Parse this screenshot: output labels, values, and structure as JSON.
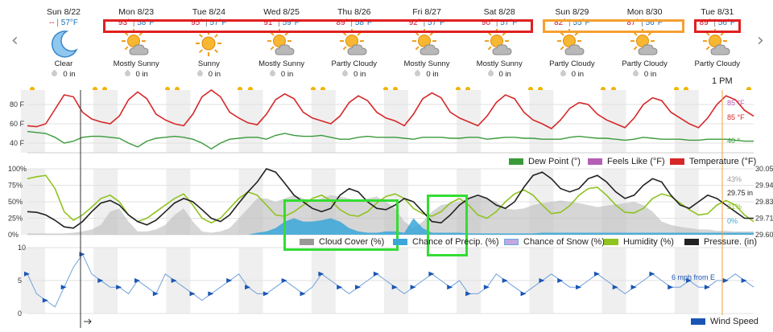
{
  "nav": {
    "prev": "‹",
    "next": "›"
  },
  "days": [
    {
      "name": "Sun 8/22",
      "hi": "--",
      "lo": "57°F",
      "cond": "Clear",
      "precip": "0 in",
      "icon": "moon"
    },
    {
      "name": "Mon 8/23",
      "hi": "93°",
      "lo": "58°F",
      "cond": "Mostly Sunny",
      "precip": "0 in",
      "icon": "sun-cloud"
    },
    {
      "name": "Tue 8/24",
      "hi": "95°",
      "lo": "57°F",
      "cond": "Sunny",
      "precip": "0 in",
      "icon": "sun"
    },
    {
      "name": "Wed 8/25",
      "hi": "91°",
      "lo": "59°F",
      "cond": "Mostly Sunny",
      "precip": "0 in",
      "icon": "sun-cloud"
    },
    {
      "name": "Thu 8/26",
      "hi": "89°",
      "lo": "58°F",
      "cond": "Partly Cloudy",
      "precip": "0 in",
      "icon": "sun-cloud"
    },
    {
      "name": "Fri 8/27",
      "hi": "92°",
      "lo": "57°F",
      "cond": "Mostly Sunny",
      "precip": "0 in",
      "icon": "sun-cloud"
    },
    {
      "name": "Sat 8/28",
      "hi": "90°",
      "lo": "57°F",
      "cond": "Mostly Sunny",
      "precip": "0 in",
      "icon": "sun-cloud"
    },
    {
      "name": "Sun 8/29",
      "hi": "82°",
      "lo": "55°F",
      "cond": "Partly Cloudy",
      "precip": "0 in",
      "icon": "sun-cloud"
    },
    {
      "name": "Mon 8/30",
      "hi": "87°",
      "lo": "56°F",
      "cond": "Partly Cloudy",
      "precip": "0 in",
      "icon": "sun-cloud"
    },
    {
      "name": "Tue 8/31",
      "hi": "89°",
      "lo": "56°F",
      "cond": "Partly Cloudy",
      "precip": "",
      "icon": "sun-cloud"
    }
  ],
  "current_time_label": "1 PM",
  "colors": {
    "temperature": "#d62728",
    "dew_point": "#3a9a3a",
    "feels_like": "#b55fb5",
    "humidity": "#8fc31f",
    "pressure": "#222222",
    "cloud_cover": "#bbbbbb",
    "precip": "#3aa7d8",
    "wind": "#2a6fc9",
    "now_line": "#f0a040",
    "box_red": "#e02020",
    "box_orange": "#f5a030",
    "box_green": "#33dd33"
  },
  "chart_data": [
    {
      "type": "line",
      "name": "temperature-panel",
      "y_ticks": [
        "80 F",
        "60 F",
        "40 F"
      ],
      "ylim": [
        30,
        95
      ],
      "series": [
        {
          "name": "Temperature (°F)",
          "values": [
            58,
            57,
            60,
            75,
            90,
            88,
            72,
            65,
            62,
            60,
            68,
            85,
            93,
            86,
            70,
            64,
            60,
            58,
            70,
            88,
            95,
            88,
            72,
            66,
            61,
            59,
            70,
            85,
            91,
            86,
            72,
            66,
            63,
            60,
            68,
            82,
            89,
            84,
            72,
            66,
            63,
            58,
            70,
            86,
            92,
            87,
            72,
            66,
            62,
            58,
            68,
            82,
            90,
            86,
            72,
            64,
            60,
            55,
            64,
            76,
            82,
            80,
            70,
            64,
            60,
            56,
            66,
            80,
            87,
            84,
            72,
            66,
            60,
            56,
            66,
            80,
            89,
            85,
            74,
            68
          ]
        },
        {
          "name": "Dew Point (°)",
          "values": [
            52,
            51,
            50,
            46,
            40,
            42,
            46,
            47,
            47,
            46,
            45,
            40,
            36,
            42,
            45,
            46,
            47,
            46,
            44,
            40,
            34,
            40,
            44,
            45,
            46,
            46,
            44,
            48,
            50,
            48,
            47,
            47,
            48,
            46,
            44,
            44,
            46,
            47,
            46,
            46,
            46,
            45,
            44,
            46,
            46,
            46,
            45,
            45,
            46,
            46,
            44,
            45,
            46,
            46,
            45,
            45,
            44,
            44,
            44,
            46,
            47,
            46,
            45,
            45,
            44,
            43,
            44,
            46,
            45,
            44,
            44,
            44,
            43,
            43,
            44,
            44,
            44,
            43,
            42,
            42
          ]
        }
      ],
      "labels_right": [
        "85 °F",
        "85 °F",
        "40 °"
      ],
      "legend": [
        "Dew Point (°)",
        "Feels Like (°F)",
        "Temperature (°F)"
      ]
    },
    {
      "type": "line",
      "name": "humidity-panel",
      "y_ticks": [
        "100%",
        "75%",
        "50%",
        "25%",
        "0%"
      ],
      "y_ticks_right": [
        "30.05",
        "29.94",
        "29.83",
        "29.71",
        "29.60"
      ],
      "series": [
        {
          "name": "Humidity (%)",
          "values": [
            85,
            88,
            90,
            70,
            35,
            22,
            30,
            42,
            55,
            60,
            50,
            30,
            20,
            25,
            35,
            45,
            55,
            62,
            45,
            25,
            18,
            25,
            40,
            55,
            65,
            60,
            45,
            30,
            28,
            35,
            45,
            55,
            60,
            52,
            38,
            30,
            28,
            35,
            48,
            58,
            62,
            55,
            40,
            32,
            28,
            35,
            48,
            55,
            45,
            30,
            25,
            35,
            50,
            62,
            68,
            60,
            45,
            32,
            34,
            44,
            60,
            70,
            72,
            60,
            45,
            34,
            33,
            40,
            55,
            62,
            58,
            48,
            38,
            30,
            32,
            45,
            52,
            45,
            30,
            20
          ]
        },
        {
          "name": "Pressure. (in)",
          "values": [
            35,
            34,
            30,
            22,
            12,
            10,
            20,
            35,
            48,
            52,
            45,
            30,
            20,
            15,
            22,
            35,
            48,
            55,
            50,
            38,
            25,
            20,
            30,
            48,
            65,
            80,
            100,
            95,
            78,
            60,
            50,
            40,
            35,
            40,
            60,
            70,
            65,
            50,
            40,
            38,
            45,
            55,
            50,
            35,
            20,
            18,
            30,
            45,
            55,
            60,
            55,
            45,
            40,
            50,
            72,
            90,
            95,
            85,
            70,
            65,
            70,
            85,
            90,
            80,
            65,
            55,
            60,
            75,
            85,
            80,
            60,
            45,
            40,
            50,
            60,
            55,
            45,
            35,
            25,
            25
          ]
        },
        {
          "name": "Cloud Cover (%)",
          "values": [
            2,
            2,
            2,
            2,
            2,
            3,
            5,
            8,
            15,
            35,
            40,
            20,
            5,
            5,
            8,
            15,
            30,
            40,
            20,
            5,
            3,
            5,
            10,
            25,
            40,
            55,
            55,
            50,
            55,
            60,
            55,
            50,
            55,
            60,
            58,
            55,
            50,
            55,
            58,
            50,
            40,
            20,
            10,
            20,
            35,
            45,
            48,
            50,
            55,
            60,
            55,
            50,
            40,
            38,
            40,
            45,
            48,
            50,
            52,
            50,
            48,
            45,
            42,
            44,
            46,
            48,
            50,
            45,
            35,
            20,
            15,
            12,
            10,
            8,
            8,
            6,
            6,
            5,
            5,
            5
          ]
        },
        {
          "name": "Chance of Precip. (%)",
          "values": [
            0,
            0,
            0,
            0,
            0,
            0,
            0,
            0,
            0,
            0,
            0,
            0,
            0,
            0,
            0,
            0,
            0,
            0,
            0,
            0,
            0,
            0,
            0,
            0,
            0,
            3,
            5,
            10,
            20,
            25,
            20,
            20,
            22,
            25,
            20,
            10,
            5,
            3,
            3,
            5,
            5,
            3,
            25,
            10,
            3,
            3,
            3,
            3,
            2,
            2,
            2,
            2,
            2,
            2,
            2,
            2,
            3,
            3,
            3,
            3,
            3,
            3,
            3,
            3,
            3,
            3,
            3,
            3,
            3,
            3,
            3,
            3,
            3,
            3,
            3,
            3,
            3,
            3,
            3,
            3
          ]
        },
        {
          "name": "Chance of Snow (%)",
          "values": []
        }
      ],
      "labels_right": [
        "43%",
        "29.75 in",
        "21%",
        "0%"
      ],
      "legend": [
        "Cloud Cover (%)",
        "Chance of Precip. (%)",
        "Chance of Snow (%)",
        "Humidity (%)",
        "Pressure. (in)"
      ]
    },
    {
      "type": "line",
      "name": "wind-panel",
      "y_ticks": [
        "10",
        "5",
        "0"
      ],
      "ylim": [
        0,
        10
      ],
      "series": [
        {
          "name": "Wind Speed",
          "values": [
            6,
            3,
            2,
            1,
            4,
            7,
            9,
            6,
            5,
            4,
            4,
            3,
            5,
            4,
            3,
            6,
            5,
            4,
            3,
            2,
            3,
            4,
            5,
            6,
            4,
            3,
            3,
            4,
            5,
            4,
            3,
            4,
            6,
            5,
            4,
            3,
            4,
            5,
            6,
            5,
            4,
            3,
            4,
            5,
            6,
            5,
            4,
            5,
            3,
            3,
            4,
            6,
            5,
            4,
            3,
            4,
            5,
            6,
            5,
            4,
            4,
            5,
            6,
            5,
            4,
            3,
            4,
            5,
            6,
            5,
            4,
            4,
            5,
            4,
            4,
            5,
            5,
            6,
            5,
            4
          ]
        }
      ],
      "labels_right": [
        "6 mph from E"
      ],
      "legend": [
        "Wind Speed"
      ]
    }
  ]
}
